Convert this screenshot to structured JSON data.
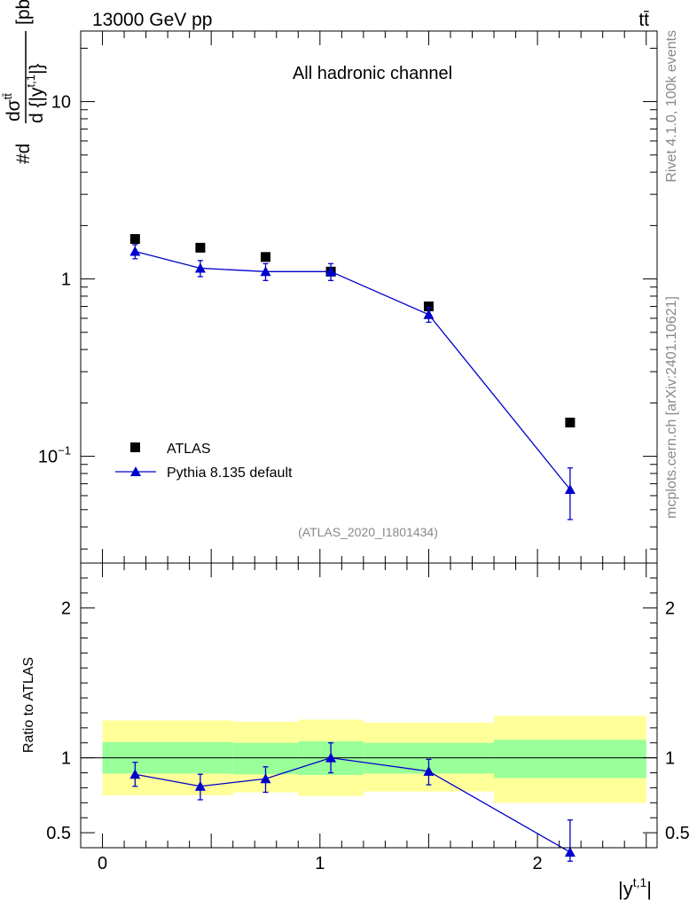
{
  "header": {
    "energy_label": "13000 GeV pp",
    "process_label": "tt̄"
  },
  "side_labels": {
    "rivet": "Rivet 4.1.0,  100k events",
    "mcplots": "mcplots.cern.ch [arXiv:2401.10621]"
  },
  "chart_data": [
    {
      "type": "scatter",
      "panel": "main",
      "title": "All hadronic channel",
      "analysis_id": "(ATLAS_2020_I1801434)",
      "ylabel": {
        "prefix": "#d",
        "numerator": "dσ",
        "numerator_sup": "tt̄",
        "denominator": "d {|y",
        "denominator_sup": "t,1",
        "denominator_end": "|}",
        "unit": "[pb]"
      },
      "yscale": "log",
      "xlim": [
        -0.1,
        2.55
      ],
      "ylim": [
        0.025,
        25
      ],
      "y_tick_labels": [
        {
          "value": 0.1,
          "base": "10",
          "exp": "−1"
        },
        {
          "value": 1,
          "base": "1",
          "exp": ""
        },
        {
          "value": 10,
          "base": "10",
          "exp": ""
        }
      ],
      "legend_position": "bottom-left",
      "series": [
        {
          "name": "ATLAS",
          "marker": "square",
          "color": "#000000",
          "x": [
            0.15,
            0.45,
            0.75,
            1.05,
            1.5,
            2.15
          ],
          "y": [
            1.68,
            1.5,
            1.33,
            1.1,
            0.7,
            0.155
          ]
        },
        {
          "name": "Pythia 8.135 default",
          "marker": "triangle",
          "color": "#0000cc",
          "x": [
            0.15,
            0.45,
            0.75,
            1.05,
            1.5,
            2.15
          ],
          "y": [
            1.43,
            1.15,
            1.1,
            1.1,
            0.63,
            0.065
          ],
          "yerr_low": [
            0.13,
            0.12,
            0.12,
            0.12,
            0.06,
            0.021
          ],
          "yerr_high": [
            0.13,
            0.12,
            0.12,
            0.12,
            0.06,
            0.021
          ]
        }
      ]
    },
    {
      "type": "scatter",
      "panel": "ratio",
      "ylabel": "Ratio to ATLAS",
      "xlabel": {
        "base": "|y",
        "sup": "t,1",
        "end": "|"
      },
      "xlim": [
        -0.1,
        2.55
      ],
      "ylim": [
        0.4,
        2.3
      ],
      "x_tick_labels": [
        "0",
        "1",
        "2"
      ],
      "y_tick_labels": [
        "0.5",
        "1",
        "2"
      ],
      "bands": [
        {
          "xlow": 0.0,
          "xhigh": 0.6,
          "green": [
            0.895,
            1.105
          ],
          "yellow": [
            0.75,
            1.25
          ]
        },
        {
          "xlow": 0.6,
          "xhigh": 0.9,
          "green": [
            0.89,
            1.1
          ],
          "yellow": [
            0.77,
            1.24
          ]
        },
        {
          "xlow": 0.9,
          "xhigh": 1.2,
          "green": [
            0.885,
            1.11
          ],
          "yellow": [
            0.745,
            1.255
          ]
        },
        {
          "xlow": 1.2,
          "xhigh": 1.8,
          "green": [
            0.895,
            1.1
          ],
          "yellow": [
            0.775,
            1.235
          ]
        },
        {
          "xlow": 1.8,
          "xhigh": 2.5,
          "green": [
            0.865,
            1.12
          ],
          "yellow": [
            0.7,
            1.28
          ]
        }
      ],
      "reference_line": 1.0,
      "series": [
        {
          "name": "Pythia 8.135 default",
          "color": "#0000cc",
          "x": [
            0.15,
            0.45,
            0.75,
            1.05,
            1.5,
            2.15
          ],
          "y": [
            0.89,
            0.81,
            0.86,
            1.0,
            0.91,
            0.37
          ],
          "yerr_low": [
            0.08,
            0.09,
            0.09,
            0.1,
            0.09,
            0.06
          ],
          "yerr_high": [
            0.08,
            0.08,
            0.08,
            0.1,
            0.08,
            0.215
          ]
        }
      ]
    }
  ]
}
